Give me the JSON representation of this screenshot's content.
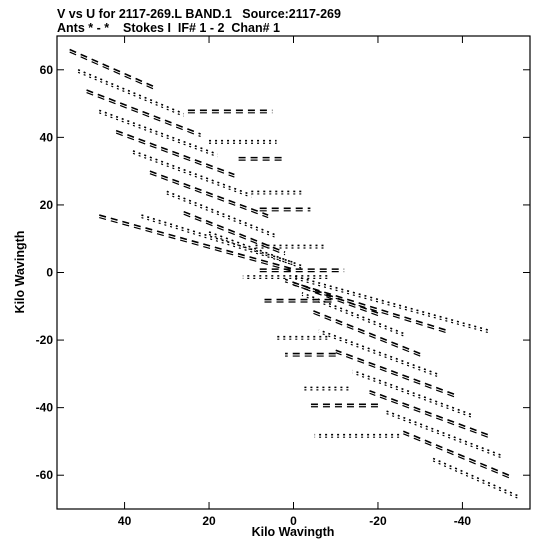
{
  "header": {
    "line1": "V vs U for 2117-269.L BAND.1   Source:2117-269",
    "line2": "Ants * - *    Stokes I  IF# 1 - 2  Chan# 1"
  },
  "chart_data": {
    "type": "scatter",
    "title": "V vs U for 2117-269.L BAND.1   Source:2117-269",
    "subtitle": "Ants * - *    Stokes I  IF# 1 - 2  Chan# 1",
    "xlabel": "Kilo Wavingth",
    "ylabel": "Kilo Wavingth",
    "xlim": [
      56,
      -56
    ],
    "ylim": [
      -70,
      70
    ],
    "x_reversed": true,
    "grid": false,
    "x_ticks": [
      40,
      20,
      0,
      -20,
      -40
    ],
    "x_tick_labels": [
      "40",
      "20",
      "0",
      "-20",
      "-40"
    ],
    "y_ticks": [
      60,
      40,
      20,
      0,
      -20,
      -40,
      -60
    ],
    "y_tick_labels": [
      "60",
      "40",
      "20",
      "0",
      "-20",
      "-40",
      "-60"
    ],
    "tracks": [
      {
        "u": [
          53,
          33
        ],
        "v": [
          66,
          55
        ]
      },
      {
        "u": [
          51,
          26
        ],
        "v": [
          60,
          47
        ]
      },
      {
        "u": [
          49,
          22
        ],
        "v": [
          54,
          41
        ]
      },
      {
        "u": [
          46,
          18
        ],
        "v": [
          48,
          35
        ]
      },
      {
        "u": [
          42,
          14
        ],
        "v": [
          42,
          29
        ]
      },
      {
        "u": [
          38,
          10
        ],
        "v": [
          36,
          23
        ]
      },
      {
        "u": [
          34,
          6
        ],
        "v": [
          30,
          17
        ]
      },
      {
        "u": [
          30,
          4
        ],
        "v": [
          24,
          11
        ]
      },
      {
        "u": [
          26,
          2
        ],
        "v": [
          18,
          6
        ]
      },
      {
        "u": [
          36,
          0
        ],
        "v": [
          17,
          3
        ]
      },
      {
        "u": [
          46,
          0
        ],
        "v": [
          17,
          1
        ]
      },
      {
        "u": [
          20,
          -2
        ],
        "v": [
          12,
          2
        ]
      },
      {
        "u": [
          25,
          5
        ],
        "v": [
          48,
          48
        ]
      },
      {
        "u": [
          20,
          4
        ],
        "v": [
          39,
          39
        ]
      },
      {
        "u": [
          13,
          2
        ],
        "v": [
          34,
          34
        ]
      },
      {
        "u": [
          10,
          -2
        ],
        "v": [
          24,
          24
        ]
      },
      {
        "u": [
          8,
          -4
        ],
        "v": [
          19,
          19
        ]
      },
      {
        "u": [
          9,
          -8
        ],
        "v": [
          8,
          8
        ]
      },
      {
        "u": [
          8,
          -12
        ],
        "v": [
          1,
          1
        ]
      },
      {
        "u": [
          -53,
          -33
        ],
        "v": [
          -66,
          -55
        ]
      },
      {
        "u": [
          -51,
          -26
        ],
        "v": [
          -60,
          -47
        ]
      },
      {
        "u": [
          -49,
          -22
        ],
        "v": [
          -54,
          -41
        ]
      },
      {
        "u": [
          -46,
          -18
        ],
        "v": [
          -48,
          -35
        ]
      },
      {
        "u": [
          -42,
          -14
        ],
        "v": [
          -42,
          -29
        ]
      },
      {
        "u": [
          -38,
          -10
        ],
        "v": [
          -36,
          -23
        ]
      },
      {
        "u": [
          -34,
          -6
        ],
        "v": [
          -30,
          -17
        ]
      },
      {
        "u": [
          -30,
          -4
        ],
        "v": [
          -24,
          -11
        ]
      },
      {
        "u": [
          -26,
          -2
        ],
        "v": [
          -18,
          -6
        ]
      },
      {
        "u": [
          -36,
          0
        ],
        "v": [
          -17,
          -3
        ]
      },
      {
        "u": [
          -46,
          0
        ],
        "v": [
          -17,
          -1
        ]
      },
      {
        "u": [
          -20,
          2
        ],
        "v": [
          -12,
          -2
        ]
      },
      {
        "u": [
          -25,
          -5
        ],
        "v": [
          -48,
          -48
        ]
      },
      {
        "u": [
          -20,
          -4
        ],
        "v": [
          -39,
          -39
        ]
      },
      {
        "u": [
          -13,
          -2
        ],
        "v": [
          -34,
          -34
        ]
      },
      {
        "u": [
          -10,
          2
        ],
        "v": [
          -24,
          -24
        ]
      },
      {
        "u": [
          -8,
          4
        ],
        "v": [
          -19,
          -19
        ]
      },
      {
        "u": [
          -9,
          8
        ],
        "v": [
          -8,
          -8
        ]
      },
      {
        "u": [
          -8,
          12
        ],
        "v": [
          -1,
          -1
        ]
      }
    ]
  }
}
